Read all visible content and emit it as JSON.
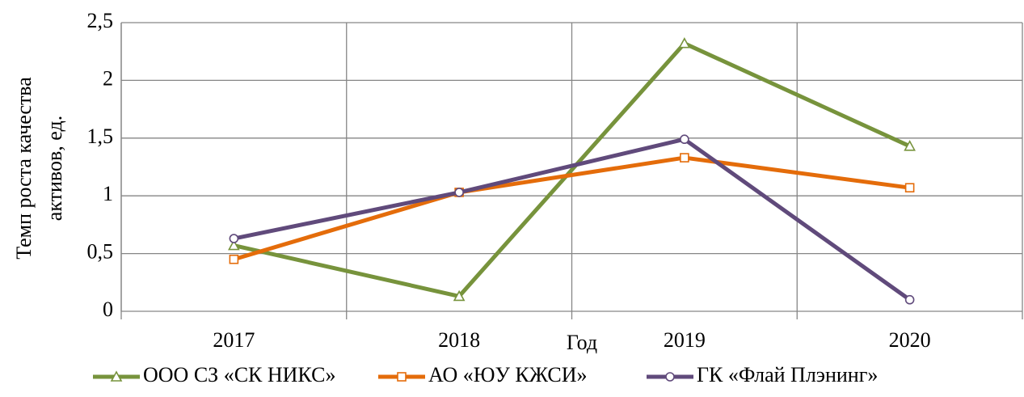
{
  "chart_data": {
    "type": "line",
    "xlabel": "Год",
    "ylabel": [
      "Темп роста качества",
      "активов, ед."
    ],
    "categories": [
      "2017",
      "2018",
      "2019",
      "2020"
    ],
    "series": [
      {
        "name": "ООО СЗ «СК НИКС»",
        "color": "#77933c",
        "marker": "triangle",
        "values": [
          0.57,
          0.13,
          2.32,
          1.43
        ]
      },
      {
        "name": "АО «ЮУ КЖСИ»",
        "color": "#e46c0a",
        "marker": "square",
        "values": [
          0.45,
          1.03,
          1.33,
          1.07
        ]
      },
      {
        "name": "ГК «Флай Плэнинг»",
        "color": "#604a7b",
        "marker": "circle",
        "values": [
          0.63,
          1.03,
          1.49,
          0.1
        ]
      }
    ],
    "ylim": [
      0,
      2.5
    ],
    "yticks": [
      0,
      {
        "value": 0.5,
        "label": "0,5"
      },
      1,
      {
        "value": 1.5,
        "label": "1,5"
      },
      2,
      {
        "value": 2.5,
        "label": "2,5"
      }
    ],
    "grid": true,
    "legend": "bottom"
  }
}
